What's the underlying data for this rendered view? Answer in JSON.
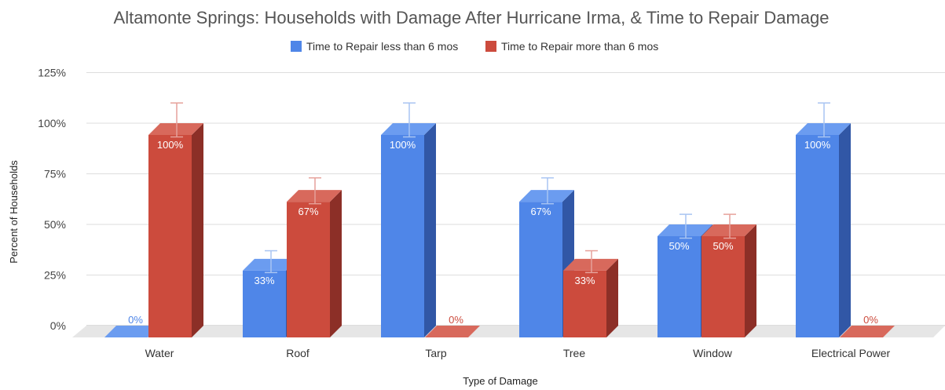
{
  "chart_data": {
    "type": "bar",
    "title": "Altamonte Springs: Households with Damage After Hurricane Irma, & Time to Repair Damage",
    "xlabel": "Type of Damage",
    "ylabel": "Percent of Households",
    "ylim": [
      0,
      125
    ],
    "yticks": [
      0,
      25,
      50,
      75,
      100,
      125
    ],
    "ytick_labels": [
      "0%",
      "25%",
      "50%",
      "75%",
      "100%",
      "125%"
    ],
    "categories": [
      "Water",
      "Roof",
      "Tarp",
      "Tree",
      "Window",
      "Electrical Power"
    ],
    "series": [
      {
        "name": "Time to Repair less than 6 mos",
        "values": [
          0,
          33,
          100,
          67,
          50,
          100
        ],
        "labels": [
          "0%",
          "33%",
          "100%",
          "67%",
          "50%",
          "100%"
        ],
        "error_bar_top": [
          null,
          37,
          110,
          73,
          55,
          110
        ]
      },
      {
        "name": "Time to Repair more than 6 mos",
        "values": [
          100,
          67,
          0,
          33,
          50,
          0
        ],
        "labels": [
          "100%",
          "67%",
          "0%",
          "33%",
          "50%",
          "0%"
        ],
        "error_bar_top": [
          110,
          73,
          null,
          37,
          55,
          null
        ]
      }
    ],
    "legend_position": "top",
    "grid": true,
    "style": "3d-bar",
    "colors": {
      "series1_front": "#4f86e8",
      "series1_side": "#3157a6",
      "series1_top": "#6b9cf0",
      "series1_err": "#a8c4f2",
      "series2_front": "#cc4b3d",
      "series2_side": "#8c2f27",
      "series2_top": "#d8695c",
      "series2_err": "#e6a19a",
      "floor": "#e6e6e6",
      "grid": "#dddddd"
    }
  }
}
